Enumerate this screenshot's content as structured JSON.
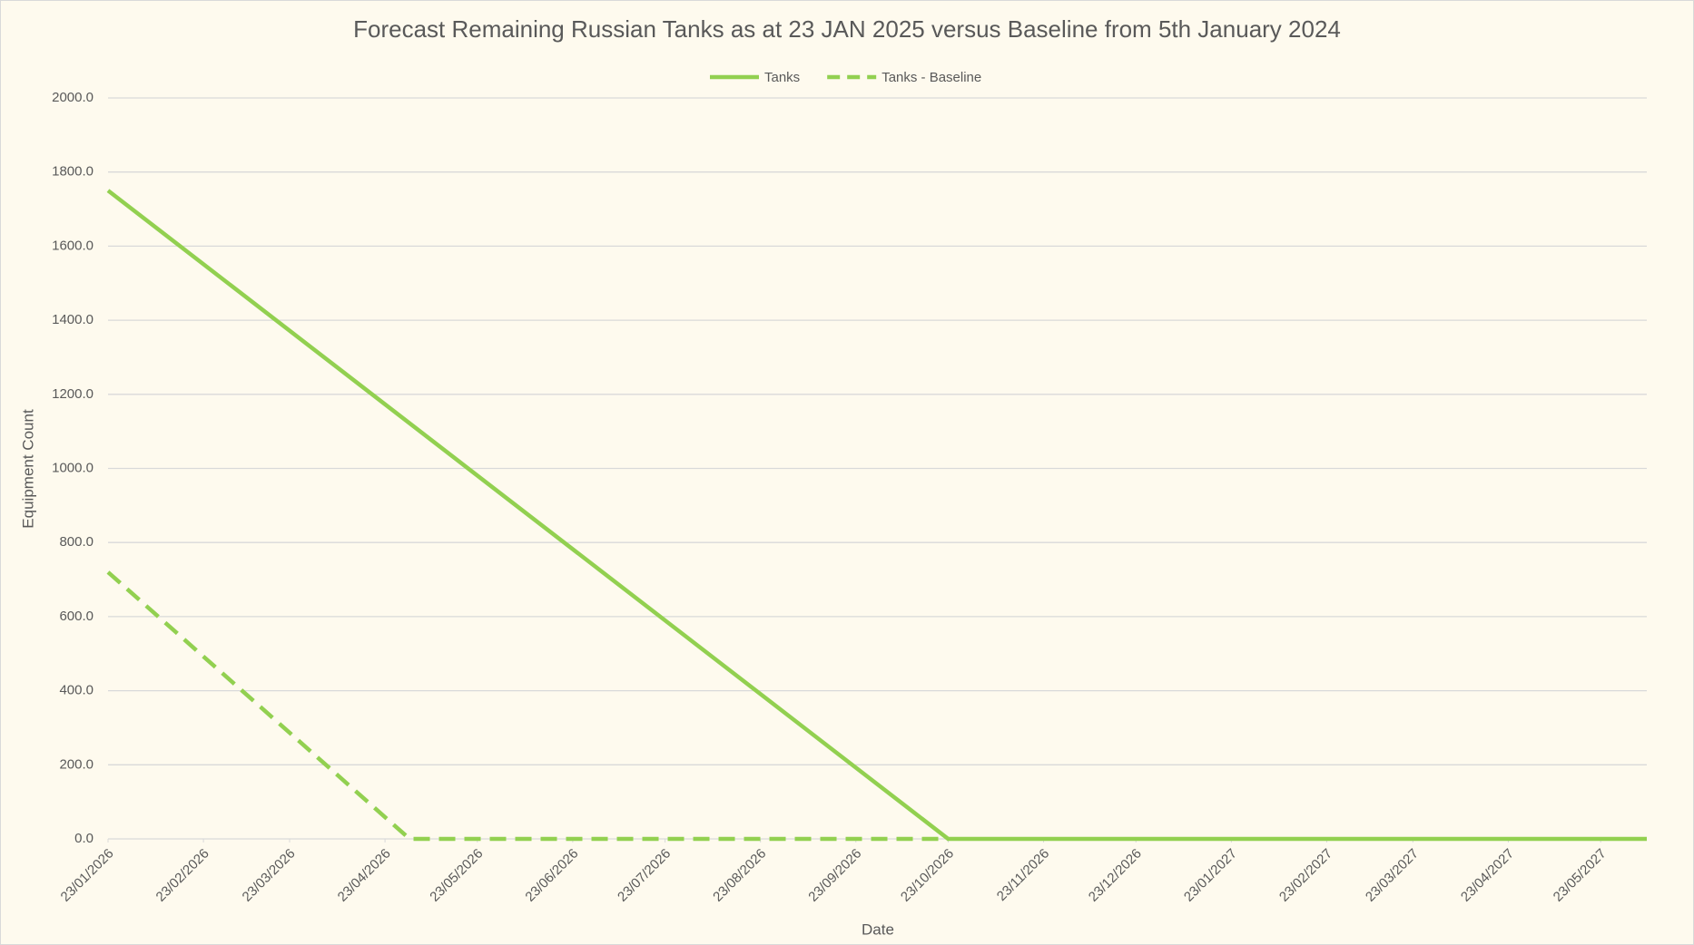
{
  "chart_data": {
    "type": "line",
    "title": "Forecast Remaining Russian Tanks as at 23 JAN 2025 versus Baseline from 5th January 2024",
    "x_label": "Date",
    "y_label": "Equipment Count",
    "series": [
      {
        "name": "Tanks",
        "color": "#92d050",
        "dash": false,
        "x": [
          "2026-01-23",
          "2026-10-23",
          "2027-06-07"
        ],
        "values": [
          1750,
          0,
          0
        ]
      },
      {
        "name": "Tanks - Baseline",
        "color": "#92d050",
        "dash": true,
        "x": [
          "2026-01-23",
          "2026-05-01",
          "2026-10-23"
        ],
        "values": [
          720,
          0,
          0
        ]
      }
    ],
    "xlim": [
      "2026-01-23",
      "2027-06-07"
    ],
    "xticks": [
      {
        "value": "2026-01-23",
        "label": "23/01/2026"
      },
      {
        "value": "2026-02-23",
        "label": "23/02/2026"
      },
      {
        "value": "2026-03-23",
        "label": "23/03/2026"
      },
      {
        "value": "2026-04-23",
        "label": "23/04/2026"
      },
      {
        "value": "2026-05-23",
        "label": "23/05/2026"
      },
      {
        "value": "2026-06-23",
        "label": "23/06/2026"
      },
      {
        "value": "2026-07-23",
        "label": "23/07/2026"
      },
      {
        "value": "2026-08-23",
        "label": "23/08/2026"
      },
      {
        "value": "2026-09-23",
        "label": "23/09/2026"
      },
      {
        "value": "2026-10-23",
        "label": "23/10/2026"
      },
      {
        "value": "2026-11-23",
        "label": "23/11/2026"
      },
      {
        "value": "2026-12-23",
        "label": "23/12/2026"
      },
      {
        "value": "2027-01-23",
        "label": "23/01/2027"
      },
      {
        "value": "2027-02-23",
        "label": "23/02/2027"
      },
      {
        "value": "2027-03-23",
        "label": "23/03/2027"
      },
      {
        "value": "2027-04-23",
        "label": "23/04/2027"
      },
      {
        "value": "2027-05-23",
        "label": "23/05/2027"
      }
    ],
    "ylim": [
      0,
      2000
    ],
    "yticks": [
      {
        "value": 0,
        "label": "0.0"
      },
      {
        "value": 200,
        "label": "200.0"
      },
      {
        "value": 400,
        "label": "400.0"
      },
      {
        "value": 600,
        "label": "600.0"
      },
      {
        "value": 800,
        "label": "800.0"
      },
      {
        "value": 1000,
        "label": "1000.0"
      },
      {
        "value": 1200,
        "label": "1200.0"
      },
      {
        "value": 1400,
        "label": "1400.0"
      },
      {
        "value": 1600,
        "label": "1600.0"
      },
      {
        "value": 1800,
        "label": "1800.0"
      },
      {
        "value": 2000,
        "label": "2000.0"
      }
    ],
    "grid": true,
    "legend": "top"
  }
}
